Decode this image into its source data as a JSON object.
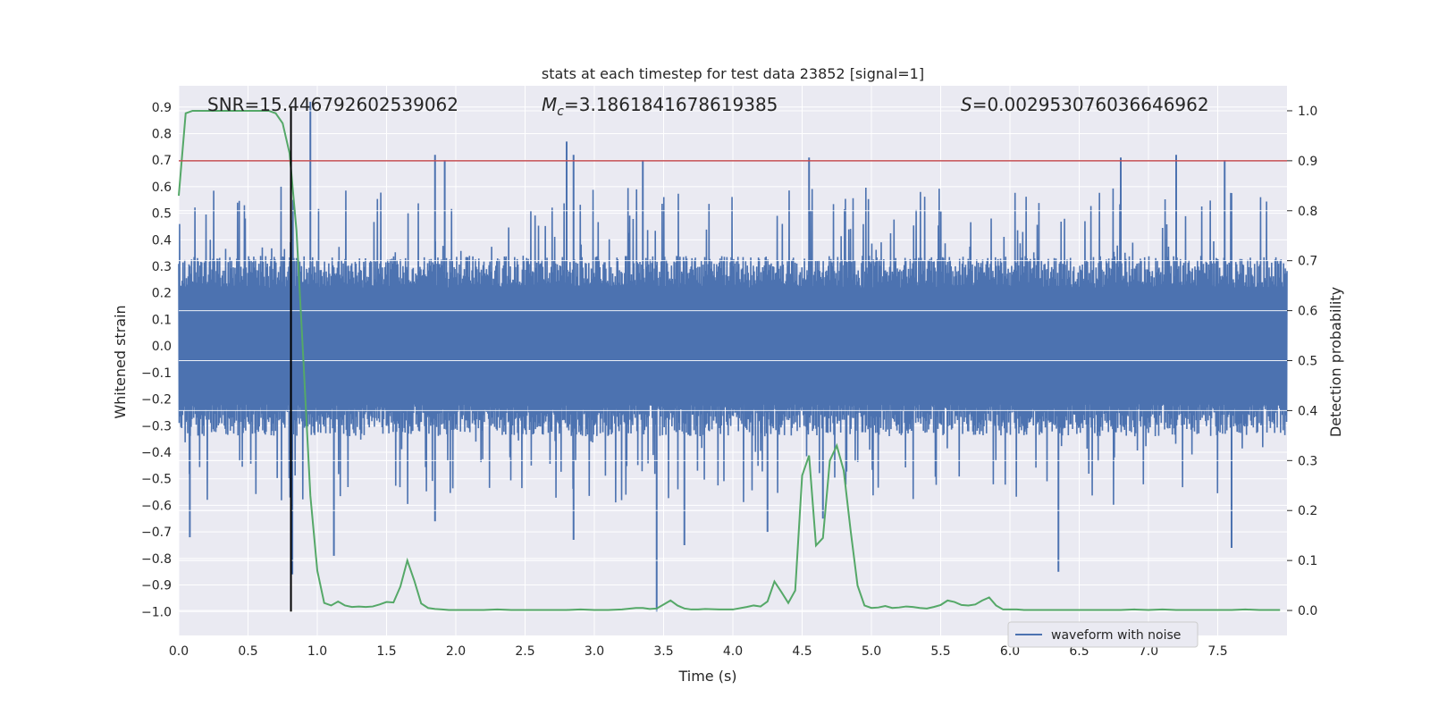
{
  "chart_data": {
    "type": "line",
    "title": "stats at each timestep for test data 23852 [signal=1]",
    "xlabel": "Time (s)",
    "ylabel_left": "Whitened strain",
    "ylabel_right": "Detection probability",
    "xlim": [
      0,
      8
    ],
    "ylim_left": [
      -1.09,
      0.98
    ],
    "ylim_right": [
      -0.05,
      1.05
    ],
    "x_ticks": [
      0.0,
      0.5,
      1.0,
      1.5,
      2.0,
      2.5,
      3.0,
      3.5,
      4.0,
      4.5,
      5.0,
      5.5,
      6.0,
      6.5,
      7.0,
      7.5
    ],
    "x_tick_labels": [
      "0.0",
      "0.5",
      "1.0",
      "1.5",
      "2.0",
      "2.5",
      "3.0",
      "3.5",
      "4.0",
      "4.5",
      "5.0",
      "5.5",
      "6.0",
      "6.5",
      "7.0",
      "7.5"
    ],
    "y_left_ticks": [
      0.9,
      0.8,
      0.7,
      0.6,
      0.5,
      0.4,
      0.3,
      0.2,
      0.1,
      0.0,
      -0.1,
      -0.2,
      -0.3,
      -0.4,
      -0.5,
      -0.6,
      -0.7,
      -0.8,
      -0.9,
      -1.0
    ],
    "y_left_tick_labels": [
      "0.9",
      "0.8",
      "0.7",
      "0.6",
      "0.5",
      "0.4",
      "0.3",
      "0.2",
      "0.1",
      "0.0",
      "−0.1",
      "−0.2",
      "−0.3",
      "−0.4",
      "−0.5",
      "−0.6",
      "−0.7",
      "−0.8",
      "−0.9",
      "−1.0"
    ],
    "y_right_ticks": [
      1.0,
      0.9,
      0.8,
      0.7,
      0.6,
      0.5,
      0.4,
      0.3,
      0.2,
      0.1,
      0.0
    ],
    "y_right_tick_labels": [
      "1.0",
      "0.9",
      "0.8",
      "0.7",
      "0.6",
      "0.5",
      "0.4",
      "0.3",
      "0.2",
      "0.1",
      "0.0"
    ],
    "annotations": {
      "snr_label": "SNR=15.446792602539062",
      "mc_symbol": "M",
      "mc_sub": "c",
      "mc_value": "=3.1861841678619385",
      "s_symbol": "S",
      "s_value": "=0.002953076036646962"
    },
    "threshold_right": 0.9,
    "marker_time": 0.81,
    "legend": {
      "label": "waveform with noise",
      "position": "lower-right"
    },
    "colors": {
      "waveform": "#4c72b0",
      "probability": "#55a868",
      "threshold": "#c44e52",
      "marker": "#000000",
      "axes_bg": "#eaeaf2",
      "grid": "#ffffff"
    },
    "series": [
      {
        "name": "Detection probability",
        "axis": "right",
        "x": [
          0.0,
          0.05,
          0.1,
          0.15,
          0.2,
          0.25,
          0.3,
          0.35,
          0.4,
          0.45,
          0.5,
          0.55,
          0.6,
          0.65,
          0.7,
          0.75,
          0.8,
          0.85,
          0.9,
          0.95,
          1.0,
          1.05,
          1.1,
          1.15,
          1.2,
          1.25,
          1.3,
          1.35,
          1.4,
          1.45,
          1.5,
          1.55,
          1.6,
          1.65,
          1.7,
          1.75,
          1.8,
          1.85,
          1.9,
          1.95,
          2.0,
          2.1,
          2.2,
          2.3,
          2.4,
          2.5,
          2.6,
          2.7,
          2.8,
          2.9,
          3.0,
          3.1,
          3.2,
          3.3,
          3.35,
          3.4,
          3.45,
          3.5,
          3.55,
          3.6,
          3.65,
          3.7,
          3.75,
          3.8,
          3.9,
          4.0,
          4.1,
          4.15,
          4.2,
          4.25,
          4.3,
          4.35,
          4.4,
          4.45,
          4.5,
          4.55,
          4.6,
          4.65,
          4.7,
          4.75,
          4.8,
          4.85,
          4.9,
          4.95,
          5.0,
          5.05,
          5.1,
          5.15,
          5.2,
          5.25,
          5.3,
          5.35,
          5.4,
          5.45,
          5.5,
          5.55,
          5.6,
          5.65,
          5.7,
          5.75,
          5.8,
          5.85,
          5.9,
          5.95,
          6.0,
          6.05,
          6.1,
          6.2,
          6.3,
          6.4,
          6.5,
          6.6,
          6.7,
          6.8,
          6.9,
          7.0,
          7.1,
          7.2,
          7.3,
          7.4,
          7.5,
          7.6,
          7.7,
          7.8,
          7.9,
          7.95
        ],
        "y": [
          0.83,
          0.995,
          1.0,
          1.0,
          1.0,
          1.0,
          1.0,
          1.0,
          1.0,
          1.0,
          1.0,
          1.0,
          1.0,
          1.0,
          0.995,
          0.975,
          0.915,
          0.76,
          0.5,
          0.23,
          0.08,
          0.015,
          0.01,
          0.018,
          0.01,
          0.007,
          0.008,
          0.007,
          0.008,
          0.012,
          0.017,
          0.016,
          0.048,
          0.1,
          0.06,
          0.014,
          0.005,
          0.003,
          0.002,
          0.001,
          0.001,
          0.001,
          0.001,
          0.002,
          0.001,
          0.001,
          0.001,
          0.001,
          0.001,
          0.002,
          0.001,
          0.001,
          0.002,
          0.005,
          0.005,
          0.003,
          0.004,
          0.012,
          0.02,
          0.01,
          0.004,
          0.002,
          0.002,
          0.003,
          0.002,
          0.002,
          0.007,
          0.01,
          0.008,
          0.018,
          0.058,
          0.037,
          0.015,
          0.04,
          0.27,
          0.31,
          0.13,
          0.145,
          0.3,
          0.33,
          0.28,
          0.16,
          0.05,
          0.01,
          0.005,
          0.006,
          0.009,
          0.005,
          0.006,
          0.008,
          0.007,
          0.005,
          0.004,
          0.007,
          0.011,
          0.02,
          0.017,
          0.011,
          0.01,
          0.012,
          0.02,
          0.026,
          0.01,
          0.002,
          0.002,
          0.002,
          0.001,
          0.001,
          0.001,
          0.001,
          0.001,
          0.001,
          0.001,
          0.001,
          0.002,
          0.001,
          0.002,
          0.001,
          0.001,
          0.001,
          0.001,
          0.001,
          0.002,
          0.001,
          0.001,
          0.001
        ]
      },
      {
        "name": "waveform with noise",
        "axis": "left",
        "description": "dense noisy strain, roughly ±0.3 core with spikes up to ~0.9 and down to ~-1.0",
        "peaks": [
          [
            0.81,
            0.71
          ],
          [
            0.95,
            0.92
          ],
          [
            1.85,
            0.72
          ],
          [
            1.92,
            0.7
          ],
          [
            2.8,
            0.77
          ],
          [
            2.85,
            0.72
          ],
          [
            3.35,
            0.7
          ],
          [
            4.55,
            0.71
          ],
          [
            6.8,
            0.71
          ],
          [
            7.2,
            0.72
          ],
          [
            7.55,
            0.7
          ]
        ],
        "troughs": [
          [
            0.08,
            -0.72
          ],
          [
            0.82,
            -0.86
          ],
          [
            1.12,
            -0.79
          ],
          [
            1.85,
            -0.66
          ],
          [
            2.85,
            -0.73
          ],
          [
            3.45,
            -1.0
          ],
          [
            3.65,
            -0.75
          ],
          [
            4.25,
            -0.7
          ],
          [
            4.65,
            -0.65
          ],
          [
            6.35,
            -0.85
          ],
          [
            7.6,
            -0.76
          ]
        ]
      }
    ]
  }
}
